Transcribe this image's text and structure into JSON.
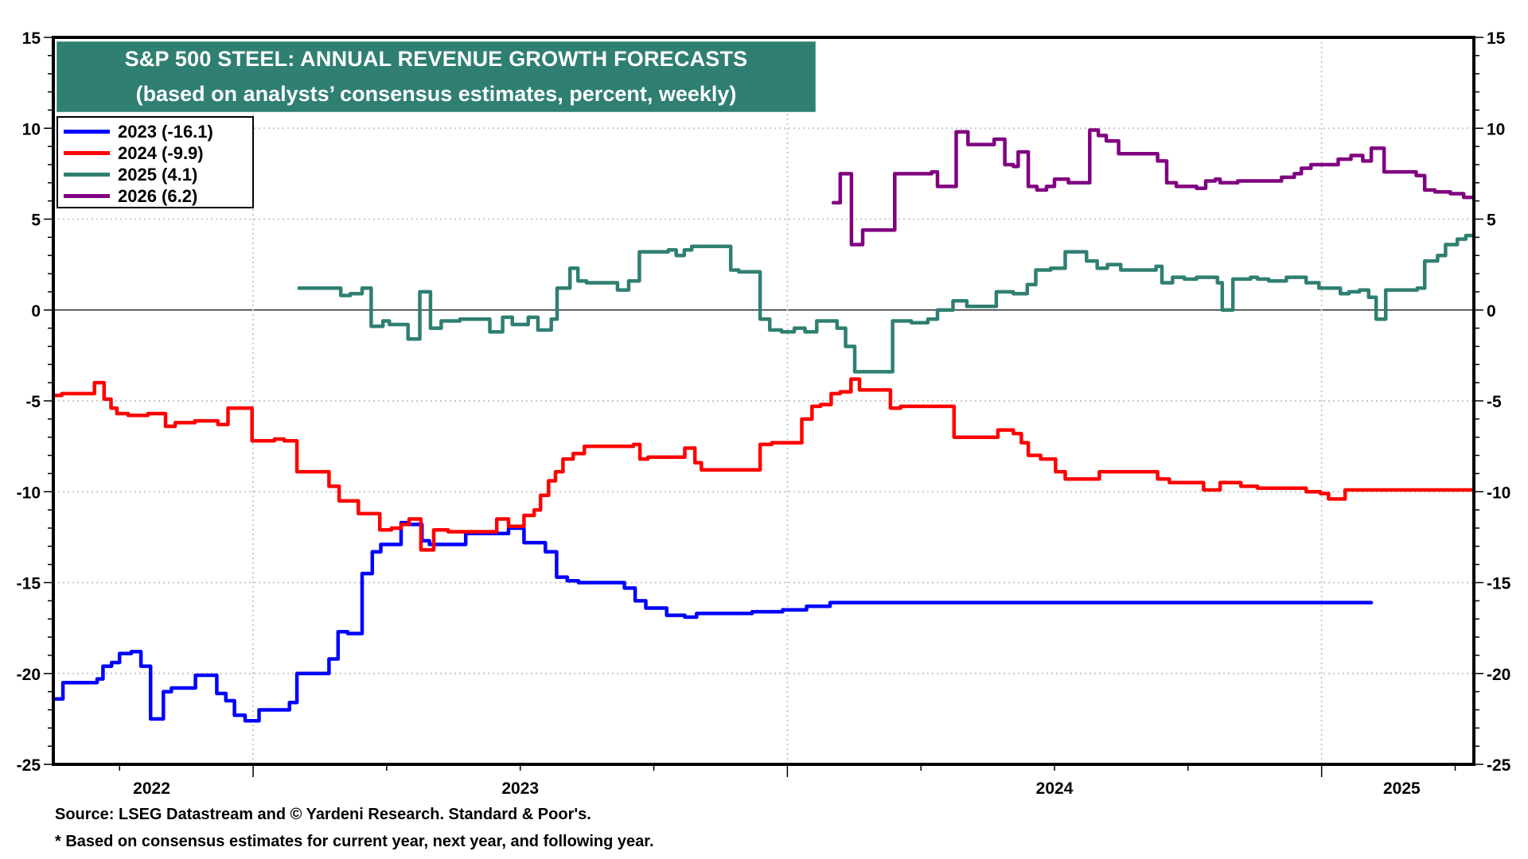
{
  "chart_data": {
    "type": "line",
    "style": "step",
    "title": "S&P 500 STEEL: ANNUAL REVENUE GROWTH FORECASTS",
    "subtitle": "(based on analysts’ consensus estimates, percent, weekly)",
    "xlabel": "",
    "ylabel": "",
    "x_units": "decimal year",
    "xlim": [
      2022.626,
      2025.285
    ],
    "ylim": [
      -25,
      15
    ],
    "y_ticks": [
      15,
      10,
      5,
      0,
      -5,
      -10,
      -15,
      -20,
      -25
    ],
    "y_tick_labels": [
      "15",
      "10",
      "5",
      "0",
      "-5",
      "-10",
      "-15",
      "-20",
      "-25"
    ],
    "y_minor_step": 1,
    "y_axes": [
      "left",
      "right"
    ],
    "x_major_ticks": [
      2023,
      2024,
      2025
    ],
    "x_minor_ticks": [
      2022.75,
      2023.25,
      2023.5,
      2023.75,
      2024.25,
      2024.5,
      2024.75,
      2025.25
    ],
    "x_tick_labels": [
      {
        "label": "2022",
        "at": 2022.81
      },
      {
        "label": "2023",
        "at": 2023.5
      },
      {
        "label": "2024",
        "at": 2024.5
      },
      {
        "label": "2025",
        "at": 2025.15
      }
    ],
    "grid": "dotted at major y ticks and year boundaries",
    "zero_line": true,
    "legend_position": "top-left",
    "series": [
      {
        "name": "2023",
        "legend_label": "2023 (-16.1)",
        "last_value": -16.1,
        "color": "#0000ff",
        "points": [
          [
            2022.626,
            -21.4
          ],
          [
            2022.644,
            -20.5
          ],
          [
            2022.708,
            -20.3
          ],
          [
            2022.719,
            -19.6
          ],
          [
            2022.735,
            -19.4
          ],
          [
            2022.75,
            -18.9
          ],
          [
            2022.772,
            -18.8
          ],
          [
            2022.79,
            -19.6
          ],
          [
            2022.808,
            -22.5
          ],
          [
            2022.832,
            -21.0
          ],
          [
            2022.847,
            -20.8
          ],
          [
            2022.892,
            -20.1
          ],
          [
            2022.932,
            -21.1
          ],
          [
            2022.949,
            -21.5
          ],
          [
            2022.965,
            -22.3
          ],
          [
            2022.985,
            -22.6
          ],
          [
            2023.011,
            -22.0
          ],
          [
            2023.068,
            -21.6
          ],
          [
            2023.082,
            -20.0
          ],
          [
            2023.142,
            -19.2
          ],
          [
            2023.159,
            -17.7
          ],
          [
            2023.177,
            -17.8
          ],
          [
            2023.204,
            -14.5
          ],
          [
            2023.223,
            -13.3
          ],
          [
            2023.239,
            -12.9
          ],
          [
            2023.277,
            -11.7
          ],
          [
            2023.29,
            -11.8
          ],
          [
            2023.316,
            -12.7
          ],
          [
            2023.33,
            -12.9
          ],
          [
            2023.398,
            -12.3
          ],
          [
            2023.478,
            -12.0
          ],
          [
            2023.507,
            -12.8
          ],
          [
            2023.547,
            -13.3
          ],
          [
            2023.568,
            -14.7
          ],
          [
            2023.588,
            -14.9
          ],
          [
            2023.609,
            -15.0
          ],
          [
            2023.695,
            -15.3
          ],
          [
            2023.715,
            -16.0
          ],
          [
            2023.735,
            -16.4
          ],
          [
            2023.774,
            -16.8
          ],
          [
            2023.808,
            -16.9
          ],
          [
            2023.83,
            -16.7
          ],
          [
            2023.934,
            -16.6
          ],
          [
            2023.991,
            -16.5
          ],
          [
            2024.036,
            -16.3
          ],
          [
            2024.08,
            -16.1
          ],
          [
            2025.093,
            -16.1
          ]
        ]
      },
      {
        "name": "2024",
        "legend_label": "2024 (-9.9)",
        "last_value": -9.9,
        "color": "#ff0000",
        "points": [
          [
            2022.626,
            -4.7
          ],
          [
            2022.642,
            -4.6
          ],
          [
            2022.703,
            -4.0
          ],
          [
            2022.721,
            -4.9
          ],
          [
            2022.734,
            -5.4
          ],
          [
            2022.745,
            -5.7
          ],
          [
            2022.766,
            -5.8
          ],
          [
            2022.803,
            -5.7
          ],
          [
            2022.836,
            -6.4
          ],
          [
            2022.854,
            -6.2
          ],
          [
            2022.891,
            -6.1
          ],
          [
            2022.934,
            -6.3
          ],
          [
            2022.953,
            -5.4
          ],
          [
            2022.998,
            -7.2
          ],
          [
            2023.04,
            -7.1
          ],
          [
            2023.058,
            -7.2
          ],
          [
            2023.082,
            -8.9
          ],
          [
            2023.142,
            -9.7
          ],
          [
            2023.161,
            -10.5
          ],
          [
            2023.197,
            -11.2
          ],
          [
            2023.237,
            -12.1
          ],
          [
            2023.259,
            -12.0
          ],
          [
            2023.277,
            -11.8
          ],
          [
            2023.292,
            -11.5
          ],
          [
            2023.314,
            -13.2
          ],
          [
            2023.338,
            -12.1
          ],
          [
            2023.365,
            -12.2
          ],
          [
            2023.456,
            -11.5
          ],
          [
            2023.478,
            -11.9
          ],
          [
            2023.507,
            -11.3
          ],
          [
            2023.526,
            -11.0
          ],
          [
            2023.538,
            -10.2
          ],
          [
            2023.553,
            -9.4
          ],
          [
            2023.566,
            -8.9
          ],
          [
            2023.58,
            -8.2
          ],
          [
            2023.599,
            -7.9
          ],
          [
            2023.62,
            -7.5
          ],
          [
            2023.712,
            -7.4
          ],
          [
            2023.724,
            -8.2
          ],
          [
            2023.739,
            -8.1
          ],
          [
            2023.808,
            -7.6
          ],
          [
            2023.827,
            -8.4
          ],
          [
            2023.839,
            -8.8
          ],
          [
            2023.949,
            -7.4
          ],
          [
            2023.971,
            -7.3
          ],
          [
            2024.027,
            -6.0
          ],
          [
            2024.046,
            -5.3
          ],
          [
            2024.062,
            -5.2
          ],
          [
            2024.082,
            -4.6
          ],
          [
            2024.099,
            -4.5
          ],
          [
            2024.119,
            -3.8
          ],
          [
            2024.135,
            -4.4
          ],
          [
            2024.193,
            -5.4
          ],
          [
            2024.212,
            -5.3
          ],
          [
            2024.312,
            -7.0
          ],
          [
            2024.394,
            -6.6
          ],
          [
            2024.423,
            -6.8
          ],
          [
            2024.438,
            -7.3
          ],
          [
            2024.451,
            -8.0
          ],
          [
            2024.474,
            -8.2
          ],
          [
            2024.502,
            -8.9
          ],
          [
            2024.52,
            -9.3
          ],
          [
            2024.584,
            -8.9
          ],
          [
            2024.693,
            -9.3
          ],
          [
            2024.715,
            -9.5
          ],
          [
            2024.779,
            -9.9
          ],
          [
            2024.81,
            -9.5
          ],
          [
            2024.849,
            -9.7
          ],
          [
            2024.88,
            -9.8
          ],
          [
            2024.971,
            -10.0
          ],
          [
            2024.998,
            -10.1
          ],
          [
            2025.013,
            -10.4
          ],
          [
            2025.044,
            -9.9
          ],
          [
            2025.285,
            -9.9
          ]
        ]
      },
      {
        "name": "2025",
        "legend_label": "2025 (4.1)",
        "last_value": 4.1,
        "color": "#2f7f72",
        "points": [
          [
            2023.086,
            1.2
          ],
          [
            2023.164,
            0.8
          ],
          [
            2023.182,
            0.9
          ],
          [
            2023.204,
            1.2
          ],
          [
            2023.221,
            -0.9
          ],
          [
            2023.243,
            -0.6
          ],
          [
            2023.255,
            -0.8
          ],
          [
            2023.29,
            -1.6
          ],
          [
            2023.312,
            1.0
          ],
          [
            2023.332,
            -1.0
          ],
          [
            2023.352,
            -0.6
          ],
          [
            2023.387,
            -0.5
          ],
          [
            2023.443,
            -1.2
          ],
          [
            2023.467,
            -0.4
          ],
          [
            2023.485,
            -0.8
          ],
          [
            2023.515,
            -0.4
          ],
          [
            2023.533,
            -1.1
          ],
          [
            2023.558,
            -0.5
          ],
          [
            2023.569,
            1.2
          ],
          [
            2023.593,
            2.3
          ],
          [
            2023.608,
            1.6
          ],
          [
            2023.624,
            1.5
          ],
          [
            2023.682,
            1.1
          ],
          [
            2023.703,
            1.6
          ],
          [
            2023.723,
            3.2
          ],
          [
            2023.777,
            3.3
          ],
          [
            2023.792,
            3.0
          ],
          [
            2023.807,
            3.3
          ],
          [
            2023.821,
            3.5
          ],
          [
            2023.894,
            2.2
          ],
          [
            2023.909,
            2.1
          ],
          [
            2023.949,
            -0.5
          ],
          [
            2023.967,
            -1.1
          ],
          [
            2023.989,
            -1.2
          ],
          [
            2024.013,
            -1.0
          ],
          [
            2024.033,
            -1.2
          ],
          [
            2024.055,
            -0.6
          ],
          [
            2024.093,
            -1.0
          ],
          [
            2024.109,
            -2.0
          ],
          [
            2024.126,
            -3.4
          ],
          [
            2024.197,
            -0.6
          ],
          [
            2024.232,
            -0.7
          ],
          [
            2024.263,
            -0.5
          ],
          [
            2024.281,
            0.0
          ],
          [
            2024.31,
            0.5
          ],
          [
            2024.336,
            0.2
          ],
          [
            2024.391,
            1.0
          ],
          [
            2024.423,
            0.9
          ],
          [
            2024.449,
            1.4
          ],
          [
            2024.465,
            2.2
          ],
          [
            2024.493,
            2.3
          ],
          [
            2024.52,
            3.2
          ],
          [
            2024.56,
            2.7
          ],
          [
            2024.58,
            2.3
          ],
          [
            2024.599,
            2.5
          ],
          [
            2024.624,
            2.2
          ],
          [
            2024.69,
            2.4
          ],
          [
            2024.701,
            1.5
          ],
          [
            2024.721,
            1.8
          ],
          [
            2024.743,
            1.7
          ],
          [
            2024.766,
            1.8
          ],
          [
            2024.805,
            1.5
          ],
          [
            2024.814,
            0.0
          ],
          [
            2024.834,
            1.7
          ],
          [
            2024.867,
            1.8
          ],
          [
            2024.88,
            1.7
          ],
          [
            2024.901,
            1.6
          ],
          [
            2024.934,
            1.8
          ],
          [
            2024.971,
            1.5
          ],
          [
            2024.995,
            1.2
          ],
          [
            2025.035,
            0.9
          ],
          [
            2025.051,
            1.0
          ],
          [
            2025.071,
            1.1
          ],
          [
            2025.088,
            0.7
          ],
          [
            2025.102,
            -0.5
          ],
          [
            2025.12,
            1.1
          ],
          [
            2025.179,
            1.2
          ],
          [
            2025.193,
            2.7
          ],
          [
            2025.217,
            3.0
          ],
          [
            2025.232,
            3.6
          ],
          [
            2025.254,
            3.9
          ],
          [
            2025.27,
            4.1
          ],
          [
            2025.285,
            4.1
          ]
        ]
      },
      {
        "name": "2026",
        "legend_label": "2026 (6.2)",
        "last_value": 6.2,
        "color": "#800080",
        "points": [
          [
            2024.086,
            5.9
          ],
          [
            2024.099,
            7.5
          ],
          [
            2024.12,
            3.6
          ],
          [
            2024.141,
            4.4
          ],
          [
            2024.201,
            7.5
          ],
          [
            2024.27,
            7.6
          ],
          [
            2024.281,
            6.8
          ],
          [
            2024.316,
            9.8
          ],
          [
            2024.338,
            9.1
          ],
          [
            2024.387,
            9.4
          ],
          [
            2024.407,
            8.0
          ],
          [
            2024.423,
            7.9
          ],
          [
            2024.432,
            8.7
          ],
          [
            2024.451,
            6.8
          ],
          [
            2024.467,
            6.6
          ],
          [
            2024.485,
            6.8
          ],
          [
            2024.5,
            7.2
          ],
          [
            2024.526,
            7.0
          ],
          [
            2024.566,
            9.9
          ],
          [
            2024.582,
            9.6
          ],
          [
            2024.597,
            9.3
          ],
          [
            2024.62,
            8.6
          ],
          [
            2024.693,
            8.2
          ],
          [
            2024.71,
            7.0
          ],
          [
            2024.728,
            6.8
          ],
          [
            2024.766,
            6.7
          ],
          [
            2024.783,
            7.1
          ],
          [
            2024.801,
            7.2
          ],
          [
            2024.81,
            7.0
          ],
          [
            2024.843,
            7.1
          ],
          [
            2024.925,
            7.3
          ],
          [
            2024.949,
            7.5
          ],
          [
            2024.962,
            7.8
          ],
          [
            2024.98,
            8.0
          ],
          [
            2025.031,
            8.3
          ],
          [
            2025.055,
            8.5
          ],
          [
            2025.077,
            8.2
          ],
          [
            2025.093,
            8.9
          ],
          [
            2025.117,
            7.6
          ],
          [
            2025.177,
            7.4
          ],
          [
            2025.193,
            6.6
          ],
          [
            2025.212,
            6.5
          ],
          [
            2025.241,
            6.4
          ],
          [
            2025.266,
            6.2
          ],
          [
            2025.285,
            6.2
          ]
        ]
      }
    ],
    "source": "Source: LSEG Datastream and © Yardeni Research. Standard & Poor's.",
    "footnote": "* Based on consensus estimates for current year, next year, and following year."
  }
}
